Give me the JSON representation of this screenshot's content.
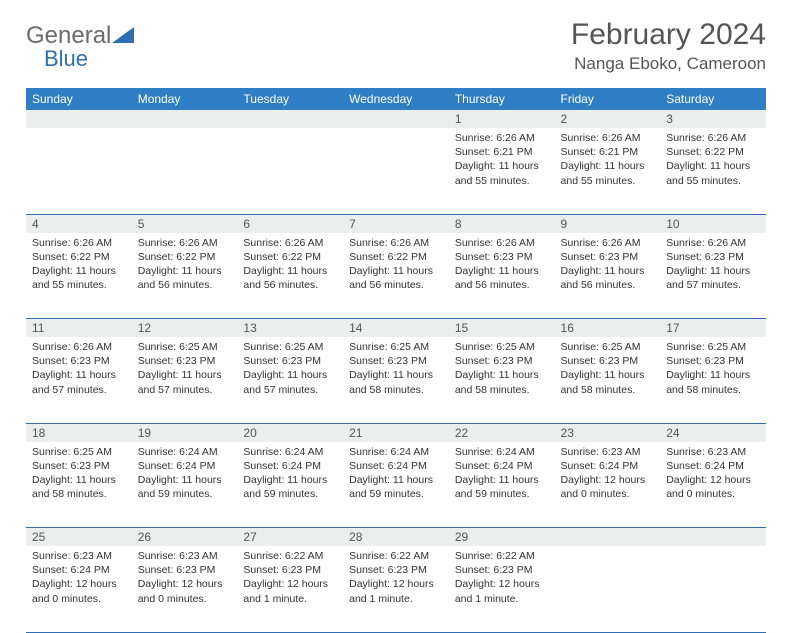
{
  "brand": {
    "word1": "General",
    "word2": "Blue"
  },
  "title": "February 2024",
  "location": "Nanga Eboko, Cameroon",
  "colors": {
    "header_bg": "#2f7dc4",
    "header_text": "#ffffff",
    "daynum_bg": "#eceded",
    "rule": "#2f6fb0",
    "brand_gray": "#6b6b6b",
    "brand_blue": "#2f6fb0"
  },
  "weekdays": [
    "Sunday",
    "Monday",
    "Tuesday",
    "Wednesday",
    "Thursday",
    "Friday",
    "Saturday"
  ],
  "weeks": [
    [
      null,
      null,
      null,
      null,
      {
        "n": "1",
        "sunrise": "6:26 AM",
        "sunset": "6:21 PM",
        "daylight": "11 hours and 55 minutes."
      },
      {
        "n": "2",
        "sunrise": "6:26 AM",
        "sunset": "6:21 PM",
        "daylight": "11 hours and 55 minutes."
      },
      {
        "n": "3",
        "sunrise": "6:26 AM",
        "sunset": "6:22 PM",
        "daylight": "11 hours and 55 minutes."
      }
    ],
    [
      {
        "n": "4",
        "sunrise": "6:26 AM",
        "sunset": "6:22 PM",
        "daylight": "11 hours and 55 minutes."
      },
      {
        "n": "5",
        "sunrise": "6:26 AM",
        "sunset": "6:22 PM",
        "daylight": "11 hours and 56 minutes."
      },
      {
        "n": "6",
        "sunrise": "6:26 AM",
        "sunset": "6:22 PM",
        "daylight": "11 hours and 56 minutes."
      },
      {
        "n": "7",
        "sunrise": "6:26 AM",
        "sunset": "6:22 PM",
        "daylight": "11 hours and 56 minutes."
      },
      {
        "n": "8",
        "sunrise": "6:26 AM",
        "sunset": "6:23 PM",
        "daylight": "11 hours and 56 minutes."
      },
      {
        "n": "9",
        "sunrise": "6:26 AM",
        "sunset": "6:23 PM",
        "daylight": "11 hours and 56 minutes."
      },
      {
        "n": "10",
        "sunrise": "6:26 AM",
        "sunset": "6:23 PM",
        "daylight": "11 hours and 57 minutes."
      }
    ],
    [
      {
        "n": "11",
        "sunrise": "6:26 AM",
        "sunset": "6:23 PM",
        "daylight": "11 hours and 57 minutes."
      },
      {
        "n": "12",
        "sunrise": "6:25 AM",
        "sunset": "6:23 PM",
        "daylight": "11 hours and 57 minutes."
      },
      {
        "n": "13",
        "sunrise": "6:25 AM",
        "sunset": "6:23 PM",
        "daylight": "11 hours and 57 minutes."
      },
      {
        "n": "14",
        "sunrise": "6:25 AM",
        "sunset": "6:23 PM",
        "daylight": "11 hours and 58 minutes."
      },
      {
        "n": "15",
        "sunrise": "6:25 AM",
        "sunset": "6:23 PM",
        "daylight": "11 hours and 58 minutes."
      },
      {
        "n": "16",
        "sunrise": "6:25 AM",
        "sunset": "6:23 PM",
        "daylight": "11 hours and 58 minutes."
      },
      {
        "n": "17",
        "sunrise": "6:25 AM",
        "sunset": "6:23 PM",
        "daylight": "11 hours and 58 minutes."
      }
    ],
    [
      {
        "n": "18",
        "sunrise": "6:25 AM",
        "sunset": "6:23 PM",
        "daylight": "11 hours and 58 minutes."
      },
      {
        "n": "19",
        "sunrise": "6:24 AM",
        "sunset": "6:24 PM",
        "daylight": "11 hours and 59 minutes."
      },
      {
        "n": "20",
        "sunrise": "6:24 AM",
        "sunset": "6:24 PM",
        "daylight": "11 hours and 59 minutes."
      },
      {
        "n": "21",
        "sunrise": "6:24 AM",
        "sunset": "6:24 PM",
        "daylight": "11 hours and 59 minutes."
      },
      {
        "n": "22",
        "sunrise": "6:24 AM",
        "sunset": "6:24 PM",
        "daylight": "11 hours and 59 minutes."
      },
      {
        "n": "23",
        "sunrise": "6:23 AM",
        "sunset": "6:24 PM",
        "daylight": "12 hours and 0 minutes."
      },
      {
        "n": "24",
        "sunrise": "6:23 AM",
        "sunset": "6:24 PM",
        "daylight": "12 hours and 0 minutes."
      }
    ],
    [
      {
        "n": "25",
        "sunrise": "6:23 AM",
        "sunset": "6:24 PM",
        "daylight": "12 hours and 0 minutes."
      },
      {
        "n": "26",
        "sunrise": "6:23 AM",
        "sunset": "6:23 PM",
        "daylight": "12 hours and 0 minutes."
      },
      {
        "n": "27",
        "sunrise": "6:22 AM",
        "sunset": "6:23 PM",
        "daylight": "12 hours and 1 minute."
      },
      {
        "n": "28",
        "sunrise": "6:22 AM",
        "sunset": "6:23 PM",
        "daylight": "12 hours and 1 minute."
      },
      {
        "n": "29",
        "sunrise": "6:22 AM",
        "sunset": "6:23 PM",
        "daylight": "12 hours and 1 minute."
      },
      null,
      null
    ]
  ],
  "labels": {
    "sunrise": "Sunrise:",
    "sunset": "Sunset:",
    "daylight": "Daylight:"
  }
}
